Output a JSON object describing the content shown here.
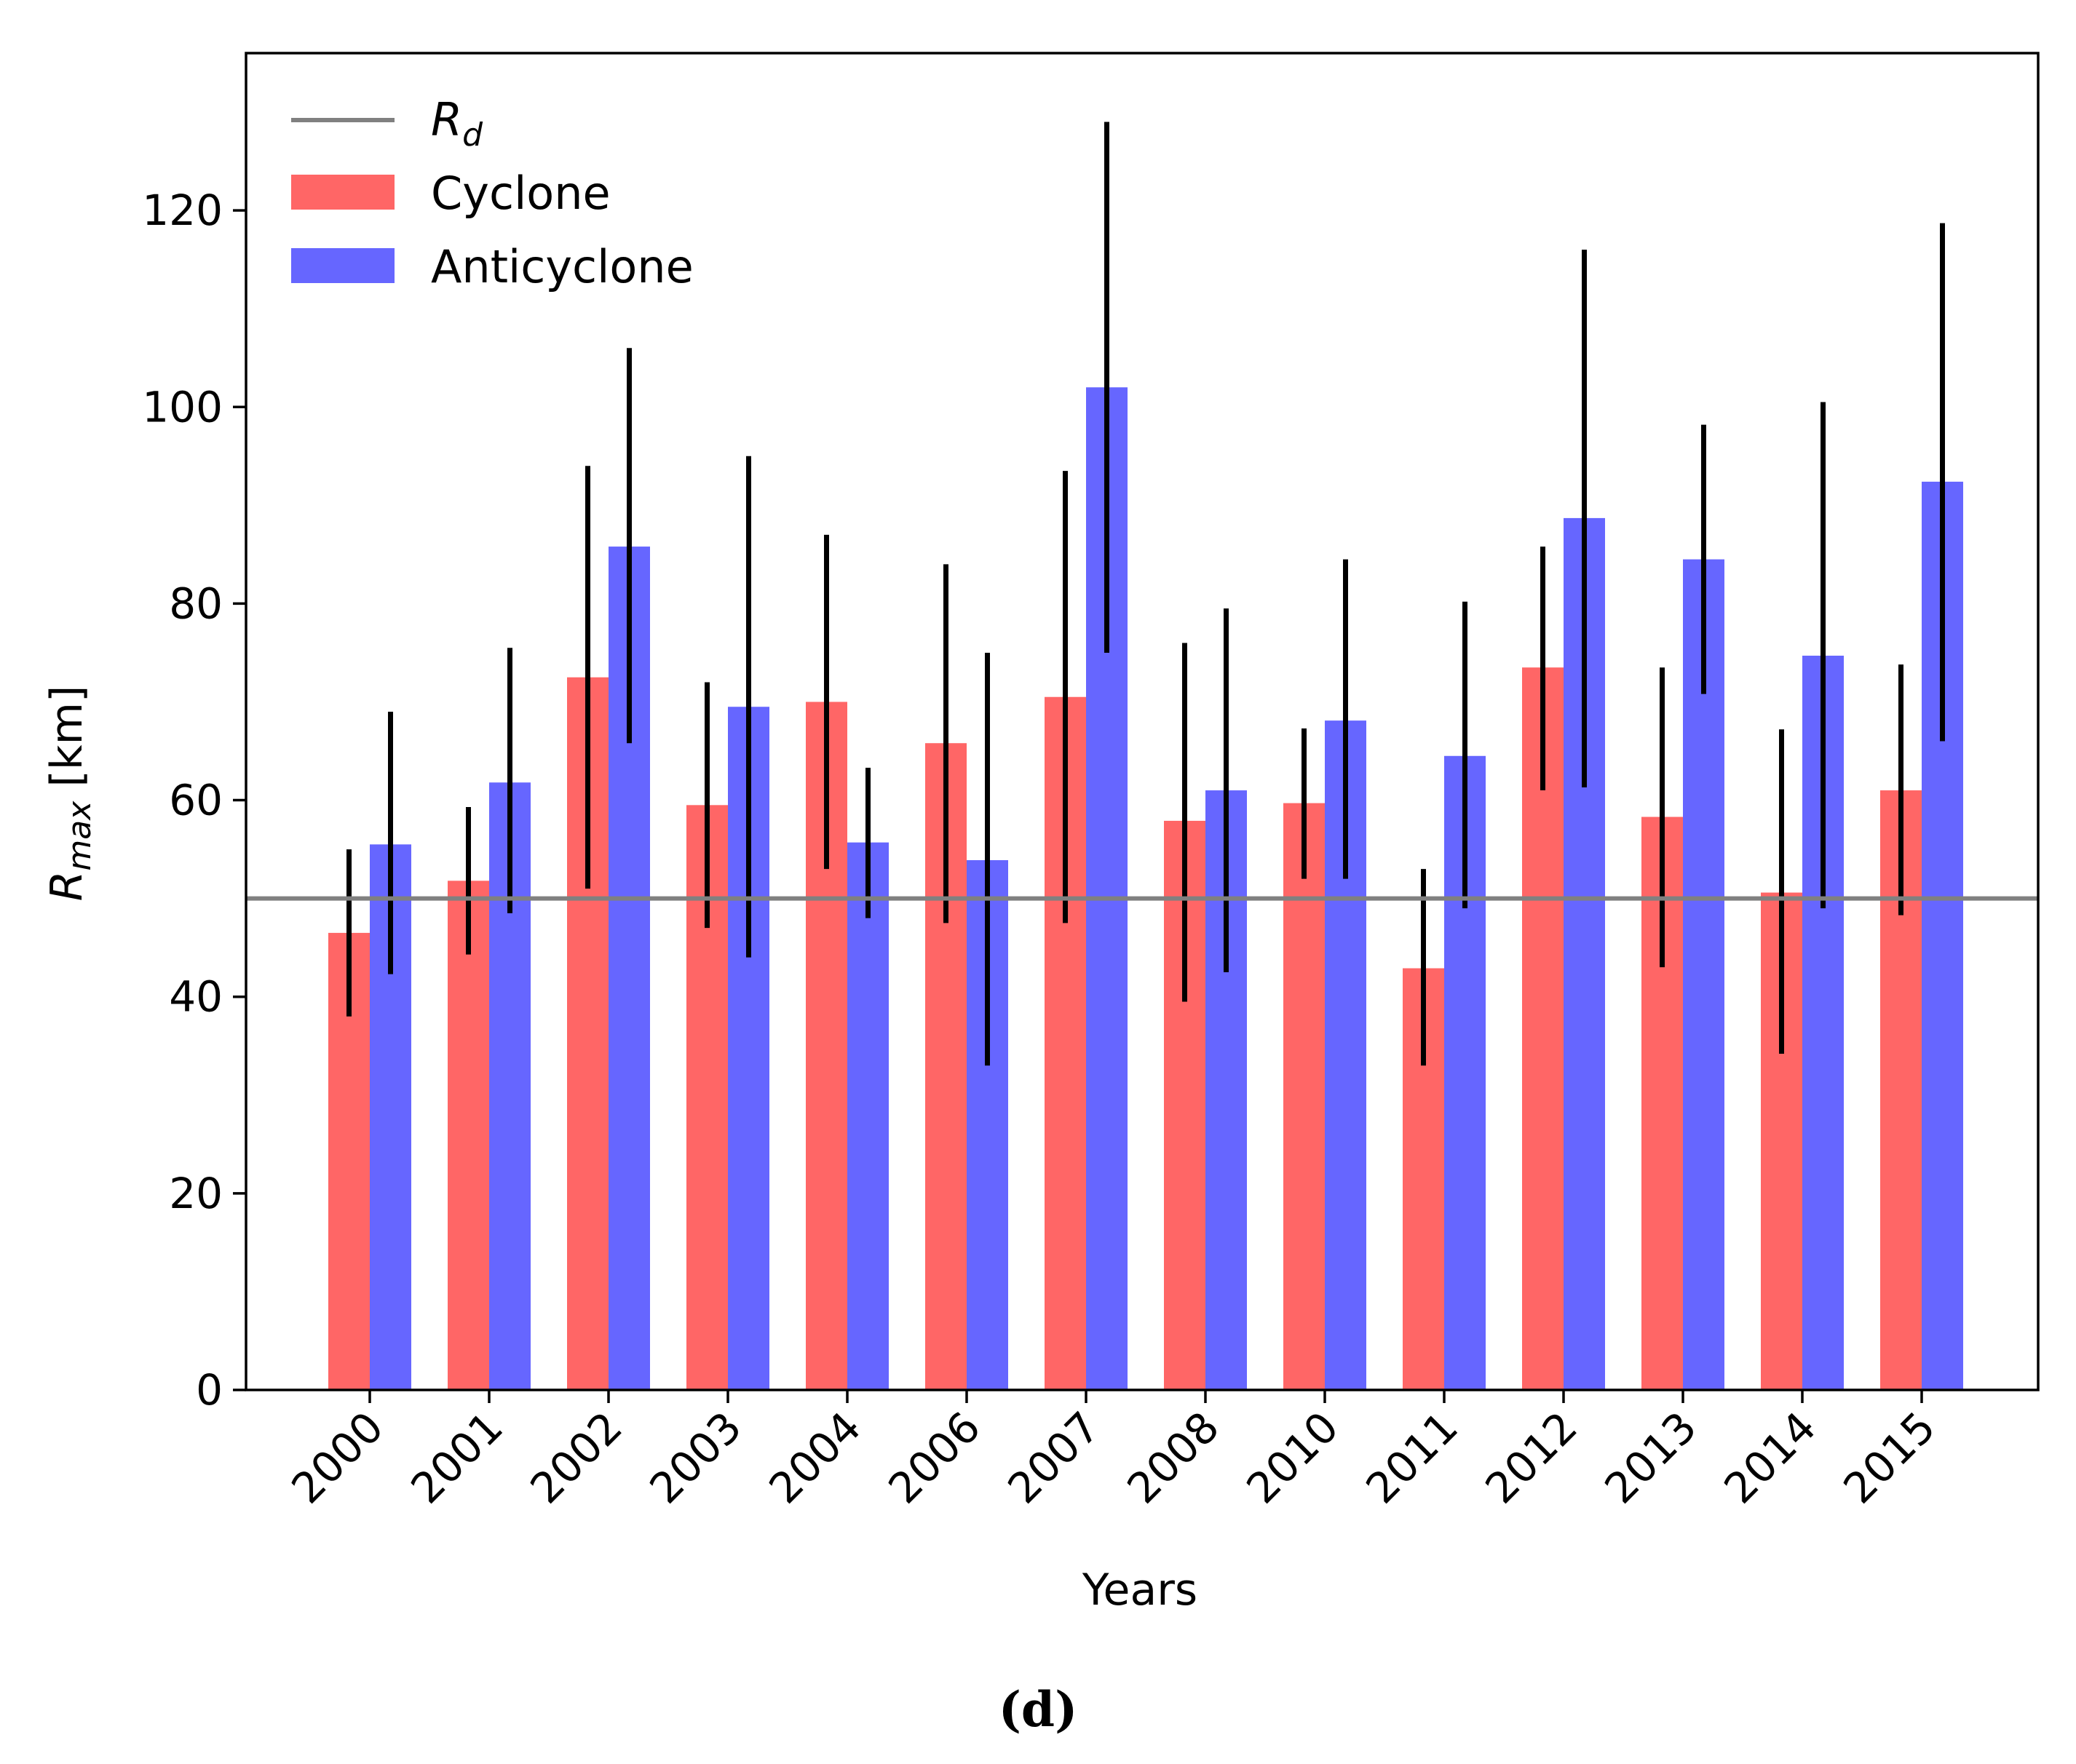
{
  "chart_data": {
    "type": "bar",
    "categories": [
      "2000",
      "2001",
      "2002",
      "2003",
      "2004",
      "2006",
      "2007",
      "2008",
      "2010",
      "2011",
      "2012",
      "2013",
      "2014",
      "2015"
    ],
    "series": [
      {
        "name": "Cyclone",
        "color": "#ff6666",
        "values": [
          46.5,
          51.8,
          72.5,
          59.5,
          70.0,
          65.8,
          70.5,
          57.9,
          59.7,
          42.9,
          73.5,
          58.3,
          50.6,
          61.0
        ],
        "err_low": [
          38.0,
          44.3,
          51.0,
          47.0,
          53.0,
          47.5,
          47.5,
          39.5,
          52.0,
          33.0,
          61.0,
          43.0,
          34.2,
          48.3
        ],
        "err_high": [
          55.0,
          59.3,
          94.0,
          72.0,
          87.0,
          84.0,
          93.5,
          76.0,
          67.3,
          53.0,
          85.8,
          73.5,
          67.2,
          73.8
        ]
      },
      {
        "name": "Anticyclone",
        "color": "#6666ff",
        "values": [
          55.5,
          61.8,
          85.8,
          69.5,
          55.7,
          53.9,
          102.0,
          61.0,
          68.1,
          64.5,
          88.7,
          84.5,
          74.7,
          92.4
        ],
        "err_low": [
          42.3,
          48.5,
          65.8,
          44.0,
          48.0,
          33.0,
          75.0,
          42.5,
          52.0,
          49.0,
          61.3,
          70.8,
          49.0,
          66.0
        ],
        "err_high": [
          69.0,
          75.5,
          106.0,
          95.0,
          63.3,
          75.0,
          129.0,
          79.5,
          84.5,
          80.2,
          116.0,
          98.2,
          100.5,
          118.7
        ]
      }
    ],
    "reference_line": {
      "label": "Rd",
      "value": 50,
      "color": "#808080"
    },
    "xlabel": "Years",
    "ylabel": "Rmax [km]",
    "ylim": [
      0,
      136
    ],
    "yticks": [
      0,
      20,
      40,
      60,
      80,
      100,
      120
    ],
    "legend_position": "top-left",
    "grid": false
  },
  "labels": {
    "ylabel_main": "R",
    "ylabel_sub": "max",
    "ylabel_unit": " [km]",
    "rd_main": "R",
    "rd_sub": "d",
    "caption": "(d)"
  }
}
